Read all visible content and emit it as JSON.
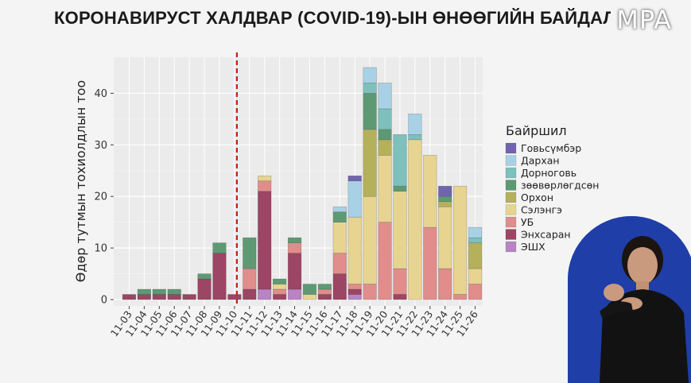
{
  "title": "КОРОНАВИРУСТ ХАЛДВАР (COVID-19)-ЫН ӨНӨӨГИЙН БАЙДАЛ",
  "watermark": "MPA",
  "chart_data": {
    "type": "bar",
    "stacked": true,
    "xlabel": "",
    "ylabel": "Өдөр тутмын тохиолдлын тоо",
    "ylim": [
      0,
      47
    ],
    "yticks": [
      0,
      10,
      20,
      30,
      40
    ],
    "grid": true,
    "legend_title": "Байршил",
    "legend_position": "right",
    "categories": [
      "11-03",
      "11-04",
      "11-05",
      "11-06",
      "11-07",
      "11-08",
      "11-09",
      "11-10",
      "11-11",
      "11-12",
      "11-13",
      "11-14",
      "11-15",
      "11-16",
      "11-17",
      "11-18",
      "11-19",
      "11-20",
      "11-21",
      "11-22",
      "11-23",
      "11-24",
      "11-25",
      "11-26"
    ],
    "reference_line": {
      "x": "11-10",
      "position": "after",
      "style": "dashed",
      "color": "#c81e1e"
    },
    "series": [
      {
        "name": "ЭШХ",
        "color": "#b884c4",
        "values": [
          0,
          0,
          0,
          0,
          0,
          0,
          0,
          0,
          0,
          2,
          0,
          2,
          0,
          0,
          0,
          1,
          0,
          0,
          0,
          0,
          0,
          0,
          0,
          0
        ]
      },
      {
        "name": "Энхсаран",
        "color": "#9c4565",
        "values": [
          1,
          1,
          1,
          1,
          1,
          4,
          9,
          1,
          2,
          19,
          1,
          7,
          0,
          1,
          5,
          1,
          0,
          0,
          1,
          0,
          0,
          0,
          0,
          0
        ]
      },
      {
        "name": "УБ",
        "color": "#e08d8c",
        "values": [
          0,
          0,
          0,
          0,
          0,
          0,
          0,
          0,
          4,
          2,
          1,
          2,
          0,
          1,
          4,
          1,
          3,
          15,
          5,
          0,
          14,
          6,
          1,
          3
        ]
      },
      {
        "name": "Сэлэнгэ",
        "color": "#e7d490",
        "values": [
          0,
          0,
          0,
          0,
          0,
          0,
          0,
          0,
          0,
          1,
          1,
          0,
          1,
          0,
          6,
          13,
          17,
          13,
          15,
          31,
          14,
          12,
          21,
          3
        ]
      },
      {
        "name": "Орхон",
        "color": "#b4b15a",
        "values": [
          0,
          0,
          0,
          0,
          0,
          0,
          0,
          0,
          0,
          0,
          0,
          0,
          0,
          0,
          0,
          0,
          13,
          3,
          0,
          0,
          0,
          1,
          0,
          5
        ]
      },
      {
        "name": "зөөвөрлөгдсөн",
        "color": "#5d9a73",
        "values": [
          0,
          1,
          1,
          1,
          0,
          1,
          2,
          0,
          6,
          0,
          1,
          1,
          2,
          1,
          2,
          0,
          7,
          2,
          1,
          0,
          0,
          1,
          0,
          0
        ]
      },
      {
        "name": "Дорноговь",
        "color": "#7dc0bc",
        "values": [
          0,
          0,
          0,
          0,
          0,
          0,
          0,
          0,
          0,
          0,
          0,
          0,
          0,
          0,
          0,
          0,
          2,
          4,
          10,
          1,
          0,
          0,
          0,
          1
        ]
      },
      {
        "name": "Дархан",
        "color": "#a9d1e6",
        "values": [
          0,
          0,
          0,
          0,
          0,
          0,
          0,
          0,
          0,
          0,
          0,
          0,
          0,
          0,
          1,
          7,
          3,
          5,
          0,
          4,
          0,
          0,
          0,
          2
        ]
      },
      {
        "name": "Говьсүмбэр",
        "color": "#7065ad",
        "values": [
          0,
          0,
          0,
          0,
          0,
          0,
          0,
          0,
          0,
          0,
          0,
          0,
          0,
          0,
          0,
          1,
          0,
          0,
          0,
          0,
          0,
          2,
          0,
          0
        ]
      }
    ],
    "legend_order": [
      "Говьсүмбэр",
      "Дархан",
      "Дорноговь",
      "зөөвөрлөгдсөн",
      "Орхон",
      "Сэлэнгэ",
      "УБ",
      "Энхсаран",
      "ЭШХ"
    ]
  }
}
